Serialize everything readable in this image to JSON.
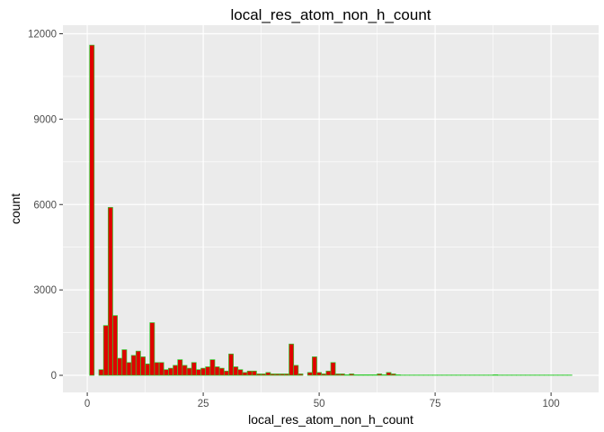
{
  "chart_data": {
    "type": "bar",
    "title": "local_res_atom_non_h_count",
    "xlabel": "local_res_atom_non_h_count",
    "ylabel": "count",
    "xlim": [
      -5.25,
      110.25
    ],
    "ylim": [
      -600,
      12300
    ],
    "x_ticks": [
      0,
      25,
      50,
      75,
      100
    ],
    "x_tick_labels": [
      "0",
      "25",
      "50",
      "75",
      "100"
    ],
    "y_ticks": [
      0,
      3000,
      6000,
      9000,
      12000
    ],
    "y_tick_labels": [
      "0",
      "3000",
      "6000",
      "9000",
      "12000"
    ],
    "bin_width": 1,
    "bins_start": 0,
    "counts": [
      0,
      11600,
      0,
      200,
      1750,
      5900,
      2100,
      600,
      900,
      450,
      700,
      850,
      650,
      400,
      1850,
      450,
      450,
      200,
      250,
      350,
      550,
      350,
      250,
      450,
      200,
      250,
      300,
      550,
      300,
      250,
      150,
      750,
      300,
      200,
      100,
      150,
      150,
      50,
      50,
      100,
      50,
      50,
      50,
      50,
      1100,
      350,
      50,
      0,
      100,
      650,
      100,
      50,
      150,
      450,
      50,
      50,
      20,
      50,
      20,
      20,
      20,
      20,
      20,
      50,
      20,
      100,
      50,
      20,
      10,
      10,
      10,
      10,
      10,
      10,
      10,
      10,
      10,
      10,
      10,
      10,
      10,
      10,
      10,
      10,
      10,
      10,
      10,
      10,
      20,
      10,
      10,
      10,
      10,
      10,
      10,
      10,
      10,
      10,
      10,
      10,
      10,
      10,
      10,
      10,
      10
    ],
    "grid": true,
    "legend": "none",
    "colors": {
      "bar_fill": "#e00000",
      "bar_outline": "#33cc33",
      "panel_background": "#ebebeb",
      "gridline": "#ffffff",
      "tick_label": "#4d4d4d",
      "axis_title": "#000000"
    }
  }
}
